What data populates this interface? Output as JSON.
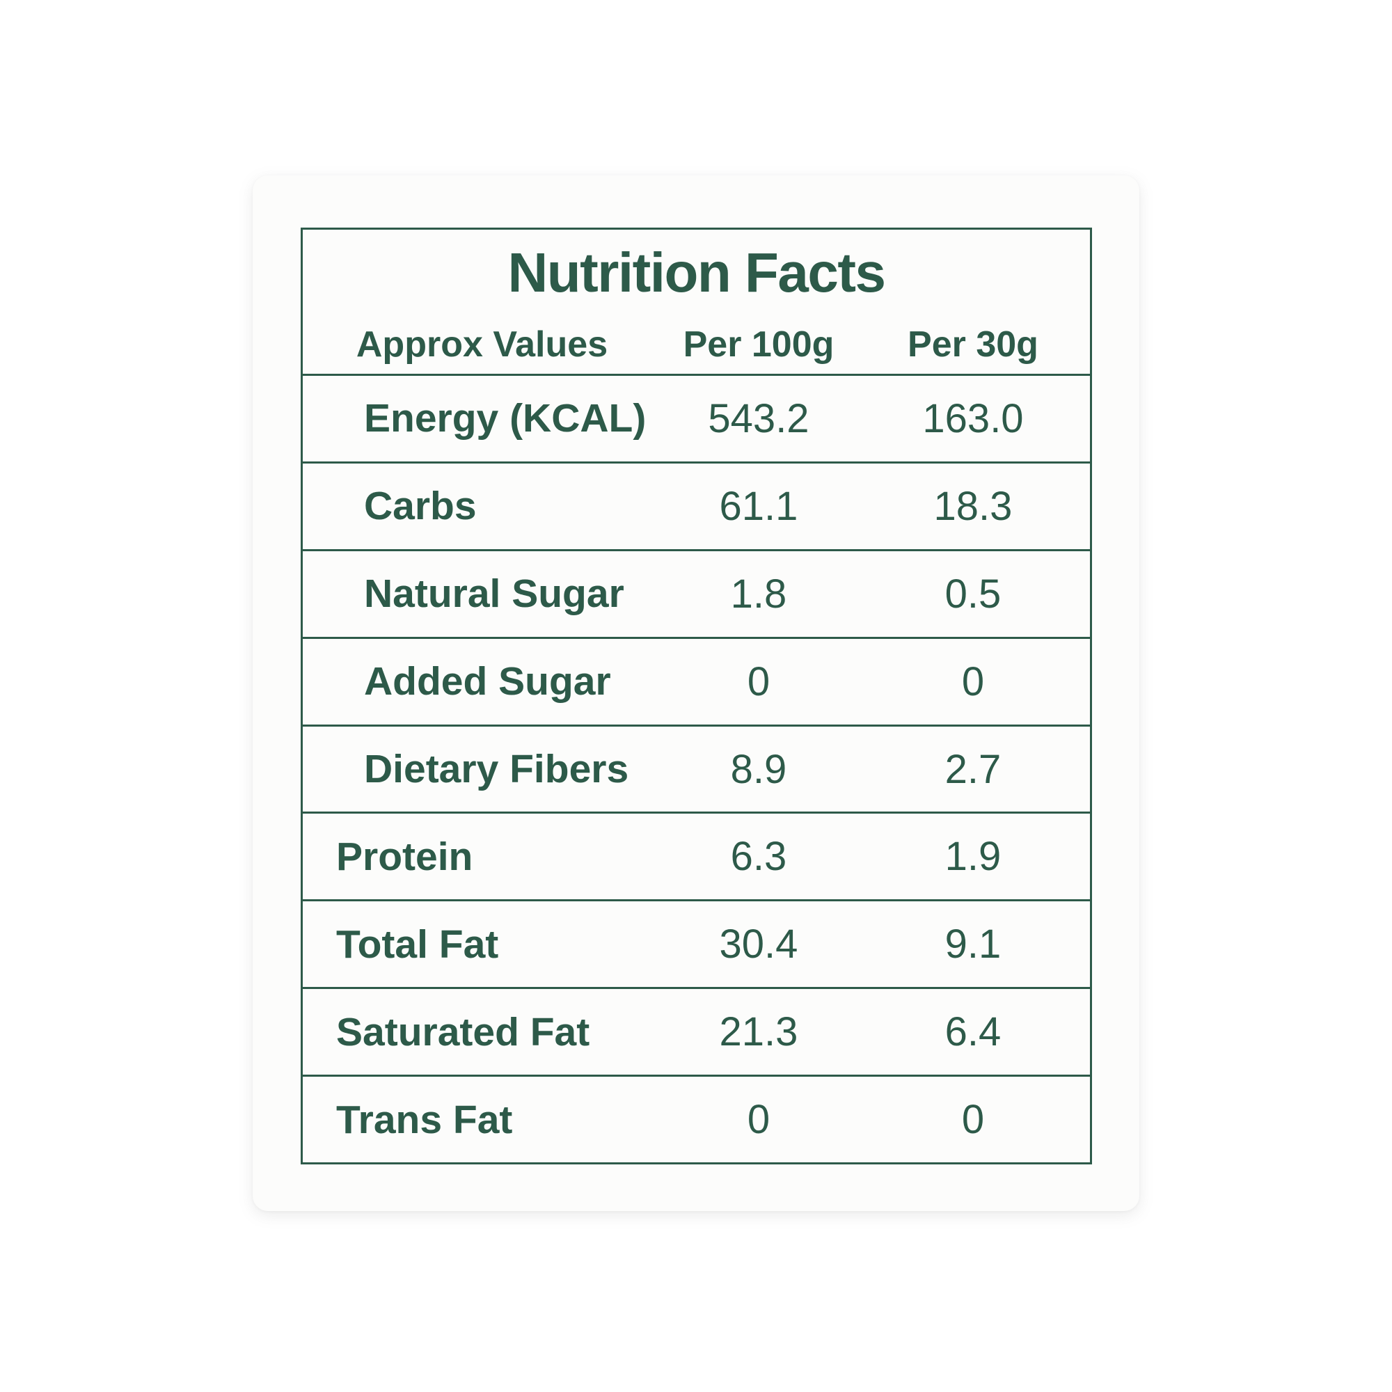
{
  "colors": {
    "accent_green": "#2d5a49",
    "card_background": "#fcfcfb",
    "page_background": "#ffffff"
  },
  "table": {
    "title": "Nutrition Facts",
    "columns": [
      "Approx Values",
      "Per 100g",
      "Per 30g"
    ],
    "rows": [
      {
        "label": "Energy (KCAL)",
        "per_100g": "543.2",
        "per_30g": "163.0",
        "indented": true
      },
      {
        "label": "Carbs",
        "per_100g": "61.1",
        "per_30g": "18.3",
        "indented": true
      },
      {
        "label": "Natural Sugar",
        "per_100g": "1.8",
        "per_30g": "0.5",
        "indented": true
      },
      {
        "label": "Added Sugar",
        "per_100g": "0",
        "per_30g": "0",
        "indented": true
      },
      {
        "label": "Dietary Fibers",
        "per_100g": "8.9",
        "per_30g": "2.7",
        "indented": true
      },
      {
        "label": "Protein",
        "per_100g": "6.3",
        "per_30g": "1.9",
        "indented": false
      },
      {
        "label": "Total Fat",
        "per_100g": "30.4",
        "per_30g": "9.1",
        "indented": false
      },
      {
        "label": "Saturated Fat",
        "per_100g": "21.3",
        "per_30g": "6.4",
        "indented": false
      },
      {
        "label": "Trans Fat",
        "per_100g": "0",
        "per_30g": "0",
        "indented": false
      }
    ]
  }
}
